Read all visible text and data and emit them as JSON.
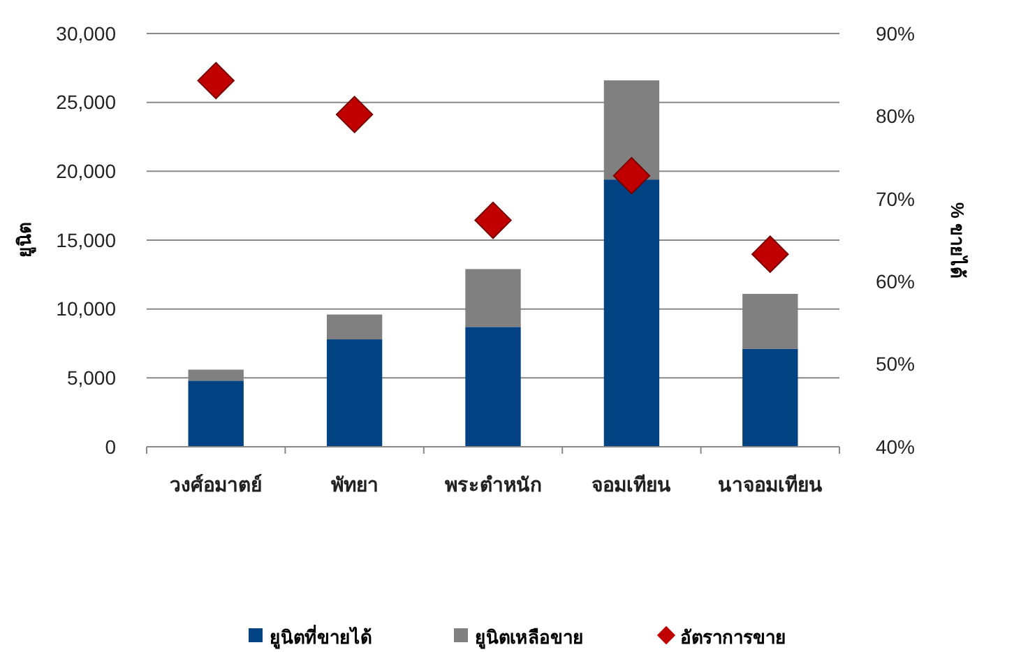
{
  "chart_data": {
    "type": "bar",
    "stacked": true,
    "categories": [
      "วงศ์อมาตย์",
      "พัทยา",
      "พระตำหนัก",
      "จอมเทียน",
      "นาจอมเทียน"
    ],
    "ylabel": "ยูนิต",
    "y2label": "% ขายได้",
    "series": [
      {
        "name": "ยูนิตที่ขายได้",
        "color": "#004282",
        "values": [
          4800,
          7800,
          8700,
          19400,
          7100
        ]
      },
      {
        "name": "ยูนิตเหลือขาย",
        "color": "#808080",
        "values": [
          800,
          1800,
          4200,
          7200,
          4000
        ]
      },
      {
        "name": "อัตราการขาย",
        "type": "scatter",
        "axis": "y2",
        "color": "#c00000",
        "values": [
          84.3,
          80.2,
          67.4,
          72.8,
          63.3
        ]
      }
    ],
    "ylim": [
      0,
      30000
    ],
    "yticks": [
      {
        "value": 0,
        "label": "0"
      },
      {
        "value": 5000,
        "label": "5,000"
      },
      {
        "value": 10000,
        "label": "10,000"
      },
      {
        "value": 15000,
        "label": "15,000"
      },
      {
        "value": 20000,
        "label": "20,000"
      },
      {
        "value": 25000,
        "label": "25,000"
      },
      {
        "value": 30000,
        "label": "30,000"
      }
    ],
    "y2lim": [
      40,
      90
    ],
    "y2ticks": [
      {
        "value": 40,
        "label": "40%"
      },
      {
        "value": 50,
        "label": "50%"
      },
      {
        "value": 60,
        "label": "60%"
      },
      {
        "value": 70,
        "label": "70%"
      },
      {
        "value": 80,
        "label": "80%"
      },
      {
        "value": 90,
        "label": "90%"
      }
    ],
    "grid": "y",
    "legend": "bottom",
    "marker": "diamond"
  }
}
